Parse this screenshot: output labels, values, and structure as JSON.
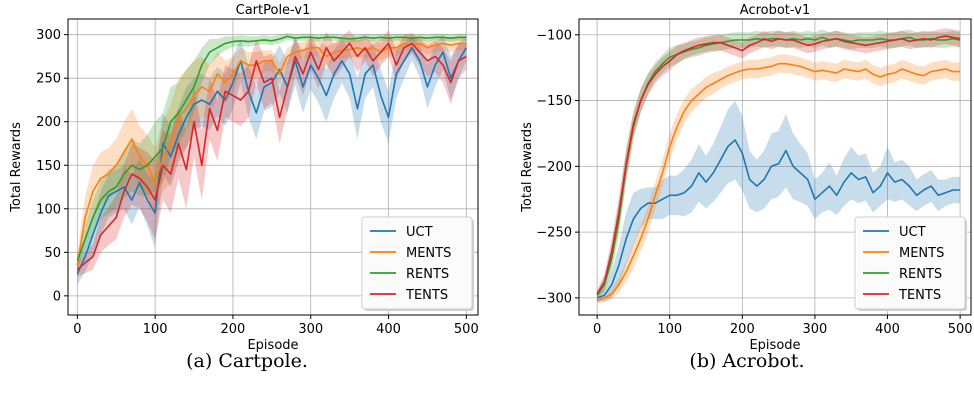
{
  "colors": {
    "UCT": "#1f77b4",
    "MENTS": "#ff7f0e",
    "RENTS": "#2ca02c",
    "TENTS": "#d62728",
    "grid": "#b0b0b0",
    "legend_border": "#cccccc"
  },
  "chart_data": [
    {
      "type": "line",
      "title": "CartPole-v1",
      "xlabel": "Episode",
      "ylabel": "Total Rewards",
      "caption": "(a)  Cartpole.",
      "xlim": [
        -12,
        515
      ],
      "ylim": [
        -22,
        318
      ],
      "xticks": [
        0,
        100,
        200,
        300,
        400,
        500
      ],
      "yticks": [
        0,
        50,
        100,
        150,
        200,
        250,
        300
      ],
      "xtick_labels": [
        "0",
        "100",
        "200",
        "300",
        "400",
        "500"
      ],
      "ytick_labels": [
        "0",
        "50",
        "100",
        "150",
        "200",
        "250",
        "300"
      ],
      "grid": true,
      "legend_position": "lower-right",
      "x": [
        0,
        10,
        20,
        30,
        40,
        50,
        60,
        70,
        80,
        90,
        100,
        110,
        120,
        130,
        140,
        150,
        160,
        170,
        180,
        190,
        200,
        210,
        220,
        230,
        240,
        250,
        260,
        270,
        280,
        290,
        300,
        310,
        320,
        330,
        340,
        350,
        360,
        370,
        380,
        390,
        400,
        410,
        420,
        430,
        440,
        450,
        460,
        470,
        480,
        490,
        500
      ],
      "series": [
        {
          "name": "UCT",
          "values": [
            25,
            45,
            70,
            95,
            115,
            120,
            125,
            110,
            130,
            110,
            95,
            175,
            160,
            185,
            205,
            220,
            225,
            220,
            235,
            225,
            245,
            270,
            235,
            210,
            240,
            245,
            260,
            240,
            270,
            240,
            265,
            250,
            230,
            255,
            270,
            255,
            215,
            255,
            265,
            230,
            205,
            255,
            270,
            285,
            270,
            240,
            265,
            280,
            250,
            270,
            285
          ],
          "band": [
            12,
            18,
            22,
            25,
            25,
            25,
            25,
            28,
            28,
            30,
            40,
            35,
            35,
            32,
            35,
            30,
            30,
            30,
            28,
            30,
            30,
            25,
            30,
            30,
            28,
            28,
            28,
            30,
            28,
            30,
            28,
            28,
            30,
            28,
            25,
            28,
            35,
            28,
            25,
            30,
            30,
            28,
            20,
            15,
            18,
            25,
            25,
            20,
            25,
            20,
            15
          ]
        },
        {
          "name": "MENTS",
          "values": [
            35,
            90,
            120,
            135,
            140,
            150,
            165,
            180,
            160,
            150,
            130,
            160,
            175,
            205,
            215,
            230,
            240,
            235,
            255,
            245,
            255,
            270,
            265,
            265,
            270,
            270,
            255,
            275,
            280,
            282,
            285,
            285,
            275,
            280,
            282,
            283,
            285,
            282,
            285,
            280,
            285,
            285,
            290,
            288,
            290,
            285,
            288,
            290,
            288,
            290,
            290
          ],
          "band": [
            12,
            25,
            30,
            30,
            30,
            30,
            35,
            35,
            35,
            35,
            40,
            40,
            45,
            45,
            45,
            40,
            35,
            30,
            25,
            25,
            20,
            15,
            15,
            15,
            12,
            12,
            12,
            10,
            10,
            10,
            10,
            10,
            12,
            10,
            10,
            10,
            10,
            10,
            10,
            10,
            10,
            10,
            8,
            8,
            8,
            8,
            8,
            8,
            8,
            8,
            8
          ]
        },
        {
          "name": "RENTS",
          "values": [
            40,
            65,
            90,
            110,
            120,
            125,
            140,
            150,
            145,
            150,
            160,
            170,
            200,
            210,
            225,
            240,
            265,
            280,
            285,
            290,
            292,
            293,
            292,
            293,
            294,
            293,
            295,
            298,
            296,
            297,
            297,
            296,
            297,
            297,
            296,
            295,
            296,
            297,
            296,
            297,
            296,
            297,
            297,
            296,
            297,
            296,
            297,
            297,
            296,
            297,
            297
          ],
          "band": [
            8,
            15,
            20,
            22,
            25,
            25,
            28,
            30,
            30,
            35,
            40,
            40,
            40,
            35,
            35,
            30,
            20,
            15,
            10,
            8,
            6,
            6,
            6,
            5,
            5,
            5,
            5,
            4,
            4,
            4,
            4,
            4,
            4,
            4,
            4,
            4,
            4,
            4,
            4,
            4,
            4,
            4,
            4,
            4,
            4,
            4,
            4,
            4,
            4,
            4,
            4
          ]
        },
        {
          "name": "TENTS",
          "values": [
            30,
            38,
            45,
            70,
            80,
            90,
            120,
            140,
            135,
            125,
            110,
            150,
            140,
            175,
            145,
            200,
            150,
            215,
            190,
            235,
            230,
            225,
            235,
            270,
            245,
            250,
            205,
            240,
            275,
            255,
            280,
            260,
            285,
            270,
            280,
            290,
            275,
            285,
            270,
            280,
            290,
            265,
            285,
            290,
            280,
            270,
            275,
            265,
            245,
            270,
            275
          ],
          "band": [
            8,
            12,
            15,
            20,
            22,
            25,
            30,
            35,
            35,
            40,
            45,
            40,
            45,
            40,
            45,
            40,
            40,
            35,
            35,
            30,
            30,
            30,
            30,
            25,
            30,
            28,
            30,
            28,
            22,
            25,
            20,
            22,
            18,
            20,
            18,
            15,
            18,
            15,
            18,
            16,
            15,
            18,
            15,
            12,
            15,
            18,
            18,
            20,
            25,
            20,
            15
          ]
        }
      ]
    },
    {
      "type": "line",
      "title": "Acrobot-v1",
      "xlabel": "Episode",
      "ylabel": "Total Rewards",
      "caption": "(b)  Acrobot.",
      "xlim": [
        -25,
        515
      ],
      "ylim": [
        -313,
        -88
      ],
      "xticks": [
        0,
        100,
        200,
        300,
        400,
        500
      ],
      "yticks": [
        -300,
        -250,
        -200,
        -150,
        -100
      ],
      "xtick_labels": [
        "0",
        "100",
        "200",
        "300",
        "400",
        "500"
      ],
      "ytick_labels": [
        "−300",
        "−250",
        "−200",
        "−150",
        "−100"
      ],
      "grid": true,
      "legend_position": "lower-right",
      "x": [
        0,
        10,
        20,
        30,
        40,
        50,
        60,
        70,
        80,
        90,
        100,
        110,
        120,
        130,
        140,
        150,
        160,
        170,
        180,
        190,
        200,
        210,
        220,
        230,
        240,
        250,
        260,
        270,
        280,
        290,
        300,
        310,
        320,
        330,
        340,
        350,
        360,
        370,
        380,
        390,
        400,
        410,
        420,
        430,
        440,
        450,
        460,
        470,
        480,
        490,
        500
      ],
      "series": [
        {
          "name": "UCT",
          "values": [
            -300,
            -298,
            -290,
            -275,
            -255,
            -240,
            -232,
            -228,
            -228,
            -225,
            -222,
            -222,
            -220,
            -215,
            -205,
            -212,
            -205,
            -195,
            -185,
            -180,
            -190,
            -210,
            -215,
            -210,
            -200,
            -198,
            -188,
            -200,
            -205,
            -210,
            -225,
            -220,
            -215,
            -222,
            -212,
            -205,
            -210,
            -208,
            -220,
            -215,
            -205,
            -212,
            -210,
            -215,
            -222,
            -218,
            -215,
            -222,
            -220,
            -218,
            -218
          ],
          "band": [
            3,
            5,
            10,
            15,
            20,
            20,
            15,
            12,
            12,
            15,
            15,
            15,
            18,
            20,
            22,
            20,
            22,
            25,
            28,
            30,
            28,
            22,
            20,
            22,
            25,
            25,
            28,
            25,
            22,
            20,
            15,
            15,
            18,
            15,
            18,
            20,
            18,
            18,
            15,
            15,
            20,
            15,
            15,
            15,
            12,
            12,
            12,
            12,
            10,
            10,
            10
          ]
        },
        {
          "name": "MENTS",
          "values": [
            -302,
            -300,
            -297,
            -290,
            -280,
            -268,
            -255,
            -240,
            -222,
            -205,
            -185,
            -170,
            -158,
            -150,
            -145,
            -140,
            -137,
            -134,
            -131,
            -129,
            -127,
            -126,
            -126,
            -125,
            -124,
            -122,
            -122,
            -123,
            -124,
            -126,
            -128,
            -127,
            -128,
            -129,
            -126,
            -127,
            -128,
            -126,
            -130,
            -132,
            -130,
            -129,
            -126,
            -128,
            -130,
            -131,
            -128,
            -127,
            -126,
            -128,
            -128
          ],
          "band": [
            2,
            3,
            4,
            6,
            8,
            10,
            10,
            10,
            10,
            10,
            10,
            10,
            9,
            9,
            8,
            8,
            8,
            7,
            7,
            7,
            7,
            7,
            7,
            7,
            7,
            7,
            7,
            7,
            7,
            7,
            7,
            7,
            7,
            7,
            7,
            7,
            7,
            7,
            7,
            7,
            7,
            7,
            7,
            7,
            7,
            7,
            7,
            7,
            7,
            7,
            7
          ]
        },
        {
          "name": "RENTS",
          "values": [
            -298,
            -290,
            -270,
            -240,
            -200,
            -170,
            -150,
            -137,
            -128,
            -122,
            -117,
            -115,
            -113,
            -111,
            -110,
            -108,
            -107,
            -106,
            -105,
            -104,
            -104,
            -104,
            -103,
            -104,
            -103,
            -103,
            -104,
            -103,
            -104,
            -103,
            -104,
            -102,
            -104,
            -103,
            -104,
            -105,
            -104,
            -104,
            -104,
            -103,
            -104,
            -104,
            -103,
            -102,
            -104,
            -104,
            -103,
            -104,
            -104,
            -103,
            -104
          ],
          "band": [
            3,
            6,
            10,
            12,
            12,
            10,
            9,
            8,
            7,
            7,
            7,
            7,
            6,
            6,
            6,
            6,
            6,
            6,
            6,
            6,
            6,
            6,
            6,
            6,
            6,
            6,
            6,
            6,
            6,
            6,
            6,
            6,
            6,
            6,
            6,
            6,
            6,
            6,
            6,
            6,
            6,
            6,
            6,
            6,
            6,
            6,
            6,
            6,
            6,
            6,
            6
          ]
        },
        {
          "name": "TENTS",
          "values": [
            -297,
            -288,
            -265,
            -235,
            -198,
            -168,
            -150,
            -138,
            -130,
            -124,
            -120,
            -115,
            -112,
            -110,
            -108,
            -107,
            -106,
            -106,
            -108,
            -110,
            -112,
            -108,
            -106,
            -103,
            -105,
            -103,
            -104,
            -104,
            -106,
            -108,
            -107,
            -105,
            -104,
            -103,
            -105,
            -106,
            -107,
            -108,
            -107,
            -106,
            -105,
            -104,
            -103,
            -105,
            -104,
            -103,
            -104,
            -102,
            -101,
            -102,
            -103
          ],
          "band": [
            3,
            6,
            10,
            12,
            12,
            10,
            9,
            8,
            7,
            7,
            7,
            7,
            6,
            6,
            6,
            6,
            6,
            6,
            6,
            6,
            6,
            6,
            6,
            6,
            6,
            6,
            6,
            6,
            6,
            6,
            6,
            6,
            6,
            6,
            6,
            6,
            6,
            6,
            6,
            6,
            6,
            6,
            6,
            6,
            6,
            6,
            6,
            6,
            6,
            6,
            6
          ]
        }
      ]
    }
  ]
}
